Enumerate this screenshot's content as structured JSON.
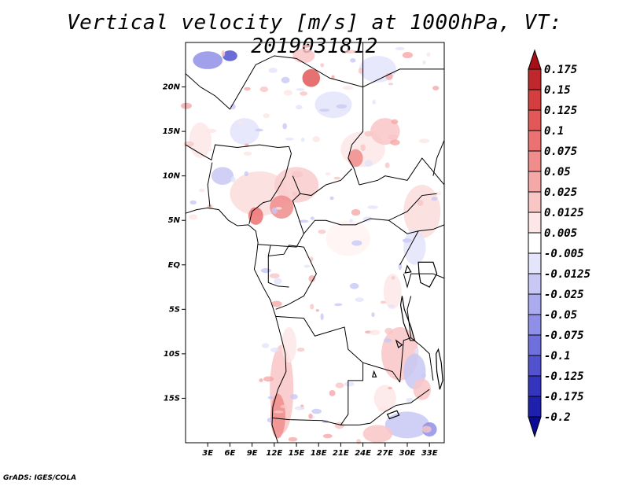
{
  "title": "Vertical velocity [m/s] at 1000hPa, VT: 2019031812",
  "footer": "GrADS: IGES/COLA",
  "map": {
    "region": "Central Africa",
    "lon_range": [
      0,
      35
    ],
    "lat_range": [
      -20,
      25
    ],
    "lat_ticks": [
      {
        "value": 20,
        "label": "20N"
      },
      {
        "value": 15,
        "label": "15N"
      },
      {
        "value": 10,
        "label": "10N"
      },
      {
        "value": 5,
        "label": "5N"
      },
      {
        "value": 0,
        "label": "EQ"
      },
      {
        "value": -5,
        "label": "5S"
      },
      {
        "value": -10,
        "label": "10S"
      },
      {
        "value": -15,
        "label": "15S"
      }
    ],
    "lon_ticks": [
      {
        "value": 3,
        "label": "3E"
      },
      {
        "value": 6,
        "label": "6E"
      },
      {
        "value": 9,
        "label": "9E"
      },
      {
        "value": 12,
        "label": "12E"
      },
      {
        "value": 15,
        "label": "15E"
      },
      {
        "value": 18,
        "label": "18E"
      },
      {
        "value": 21,
        "label": "21E"
      },
      {
        "value": 24,
        "label": "24E"
      },
      {
        "value": 27,
        "label": "27E"
      },
      {
        "value": 30,
        "label": "30E"
      },
      {
        "value": 33,
        "label": "33E"
      }
    ]
  },
  "colorbar": {
    "labels": [
      "0.175",
      "0.15",
      "0.125",
      "0.1",
      "0.075",
      "0.05",
      "0.025",
      "0.0125",
      "0.005",
      "-0.005",
      "-0.0125",
      "-0.025",
      "-0.05",
      "-0.075",
      "-0.1",
      "-0.125",
      "-0.175",
      "-0.2"
    ],
    "colors": [
      "#a50f15",
      "#c0272d",
      "#d53e3e",
      "#e25858",
      "#ec7272",
      "#f08c8c",
      "#f5a8a8",
      "#f9c6c6",
      "#fde6e6",
      "#ffffff",
      "#e4e4fb",
      "#c8c8f5",
      "#ababef",
      "#8f8fe7",
      "#7070dd",
      "#5252cf",
      "#3434bf",
      "#1f1fad",
      "#0a0a96"
    ]
  }
}
